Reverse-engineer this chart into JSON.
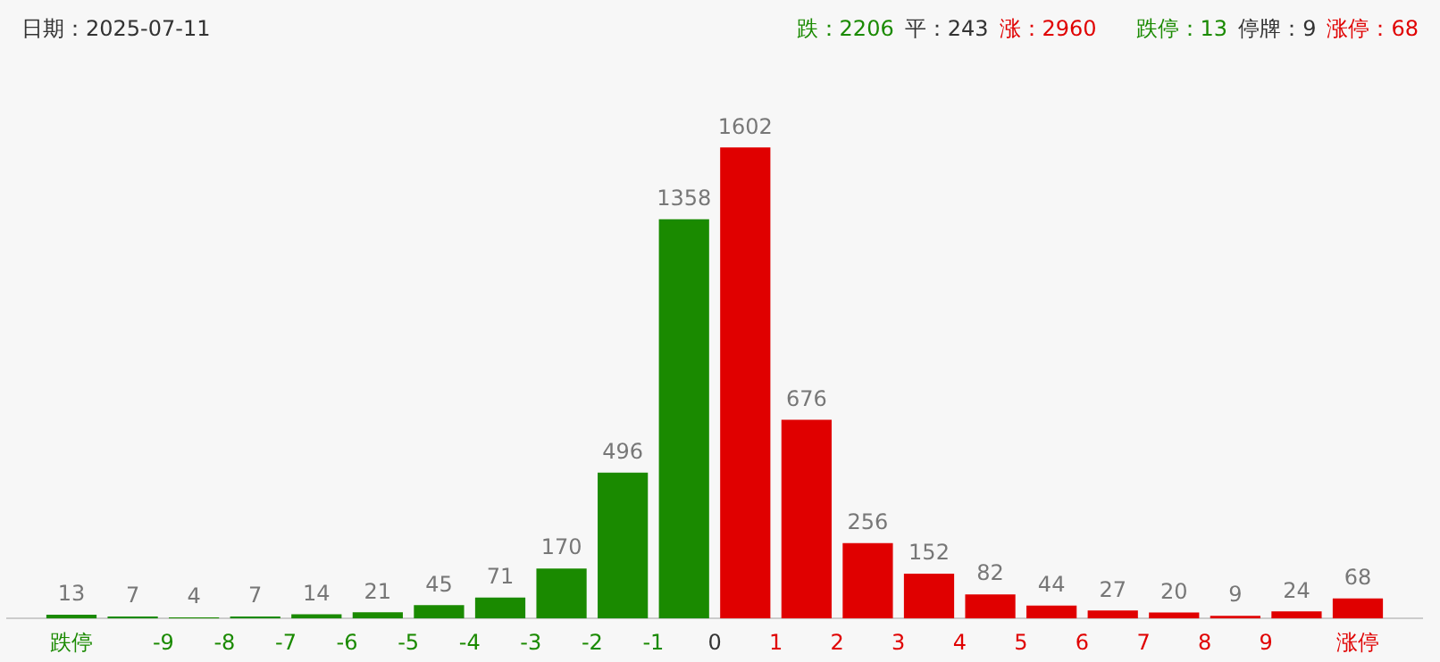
{
  "chart_data": {
    "type": "bar",
    "title": "日期：2025-07-11",
    "annotations": [
      "跌：2206",
      "平：243",
      "涨：2960",
      "跌停：13",
      "停牌：9",
      "涨停：68"
    ],
    "x": [
      -10.5,
      -9.5,
      -8.5,
      -7.5,
      -6.5,
      -5.5,
      -4.5,
      -3.5,
      -2.5,
      -1.5,
      -0.5,
      0.5,
      1.5,
      2.5,
      3.5,
      4.5,
      5.5,
      6.5,
      7.5,
      8.5,
      9.5,
      10.5
    ],
    "values": [
      13,
      7,
      4,
      7,
      14,
      21,
      45,
      71,
      170,
      496,
      1358,
      1602,
      676,
      256,
      152,
      82,
      44,
      27,
      20,
      9,
      24,
      68
    ],
    "colors": [
      "#1a8a00",
      "#1a8a00",
      "#1a8a00",
      "#1a8a00",
      "#1a8a00",
      "#1a8a00",
      "#1a8a00",
      "#1a8a00",
      "#1a8a00",
      "#1a8a00",
      "#1a8a00",
      "#e00000",
      "#e00000",
      "#e00000",
      "#e00000",
      "#e00000",
      "#e00000",
      "#e00000",
      "#e00000",
      "#e00000",
      "#e00000",
      "#e00000"
    ],
    "xlim": [
      -11,
      11
    ],
    "xticks": [
      {
        "value": -10.5,
        "label": "跌停"
      },
      -9,
      -8,
      -7,
      -6,
      -5,
      -4,
      -3,
      -2,
      -1,
      0,
      1,
      2,
      3,
      4,
      5,
      6,
      7,
      8,
      9,
      {
        "value": 10.5,
        "label": "涨停"
      }
    ],
    "data_labels": true,
    "grid": false,
    "legend": false
  }
}
